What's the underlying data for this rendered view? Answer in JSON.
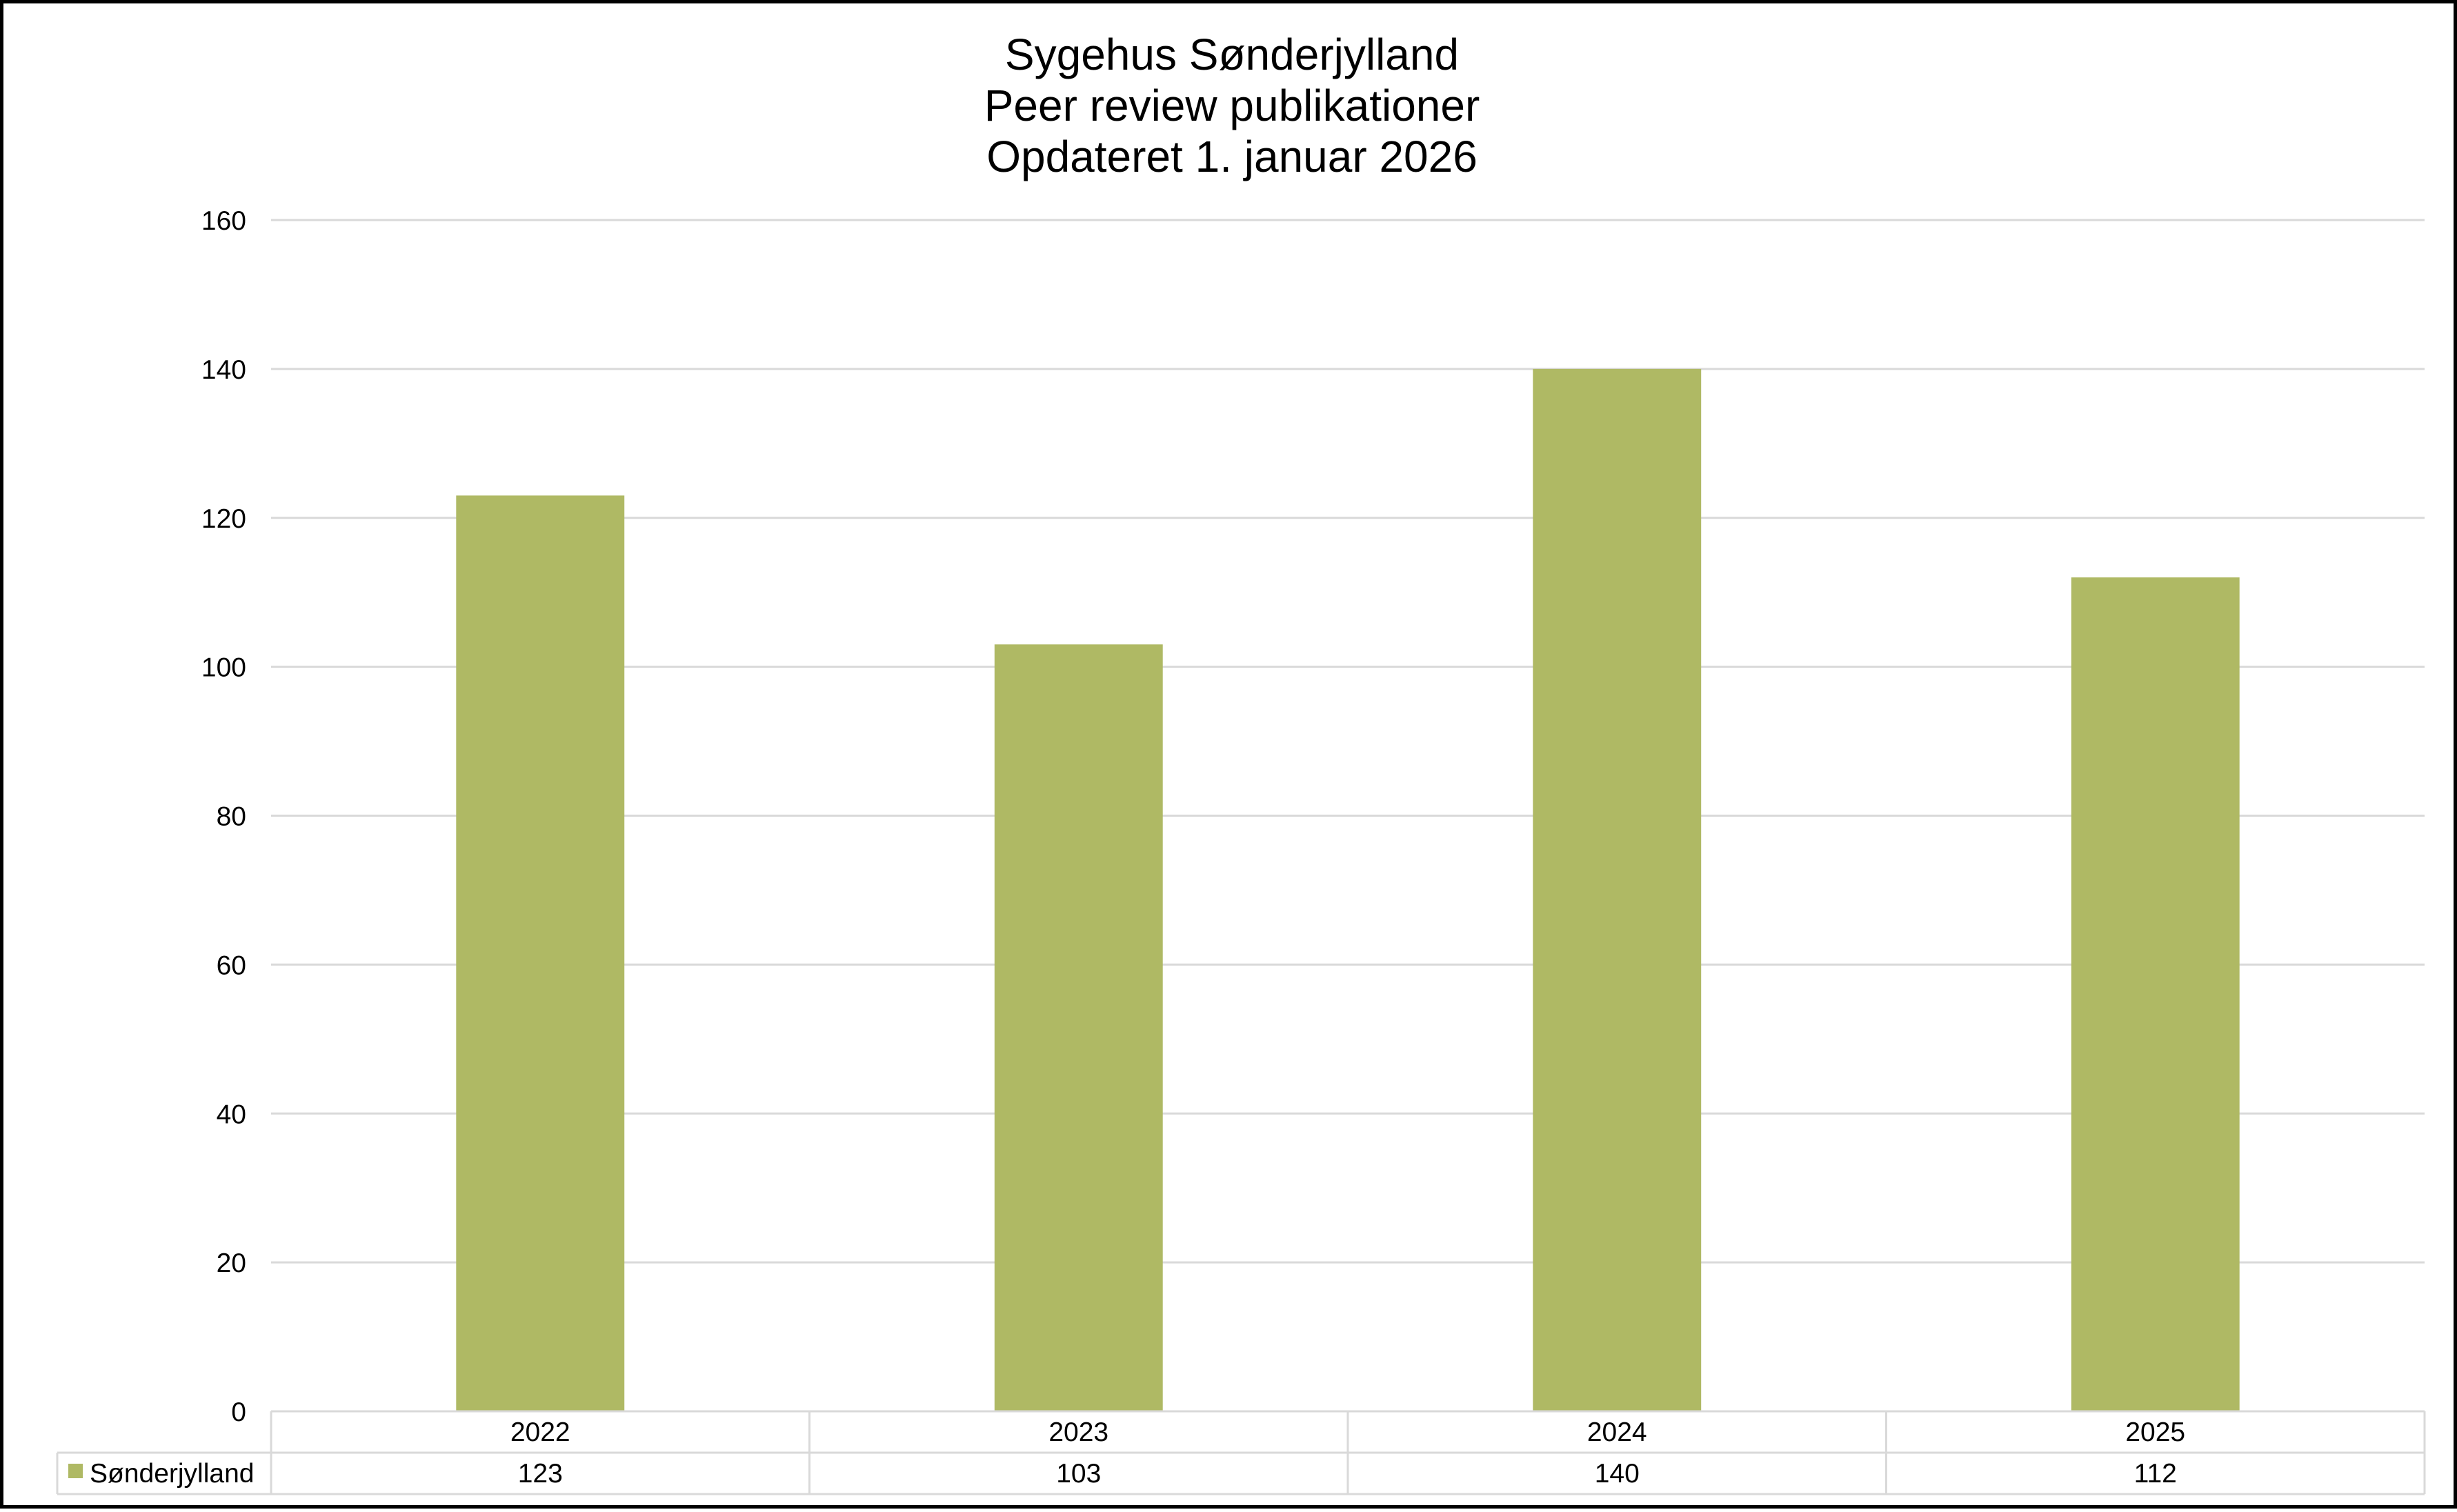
{
  "chart_data": {
    "type": "bar",
    "title_lines": [
      "Sygehus Sønderjylland",
      "Peer review publikationer",
      "Opdateret 1. januar 2026"
    ],
    "categories": [
      "2022",
      "2023",
      "2024",
      "2025"
    ],
    "series": [
      {
        "name": "Sønderjylland",
        "values": [
          123,
          103,
          140,
          112
        ],
        "color": "#afb964"
      }
    ],
    "ylim": [
      0,
      160
    ],
    "yticks": [
      0,
      20,
      40,
      60,
      80,
      100,
      120,
      140,
      160
    ],
    "grid": true,
    "legend": "data-table",
    "xlabel": "",
    "ylabel": ""
  }
}
